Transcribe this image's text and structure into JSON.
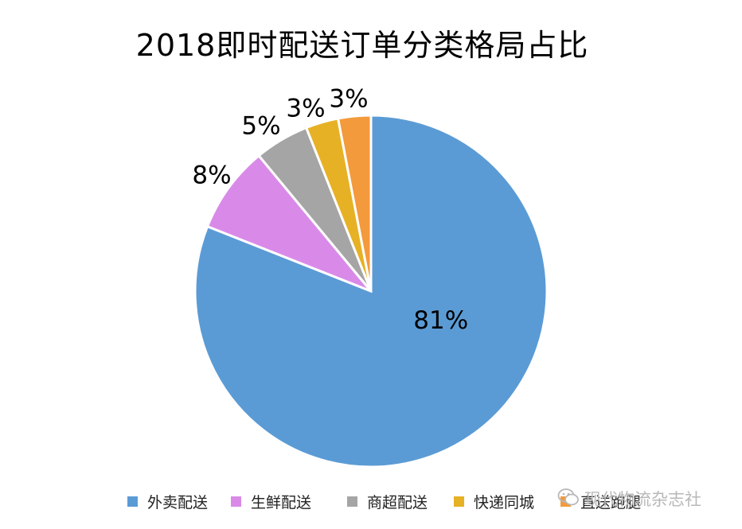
{
  "chart_data": {
    "type": "pie",
    "title": "2018即时配送订单分类格局占比",
    "start_angle_deg": 0,
    "direction": "clockwise",
    "slices": [
      {
        "name": "外卖配送",
        "value": 81,
        "label": "81%",
        "color": "#5b9bd5"
      },
      {
        "name": "生鲜配送",
        "value": 8,
        "label": "8%",
        "color": "#d98ae8"
      },
      {
        "name": "商超配送",
        "value": 5,
        "label": "5%",
        "color": "#a5a5a5"
      },
      {
        "name": "快递同城",
        "value": 3,
        "label": "3%",
        "color": "#e7b125"
      },
      {
        "name": "直送跑腿",
        "value": 3,
        "label": "3%",
        "color": "#f39a3c"
      }
    ],
    "legend_position": "bottom"
  },
  "watermark": {
    "text": "现代物流杂志社",
    "icon": "wechat-icon"
  }
}
